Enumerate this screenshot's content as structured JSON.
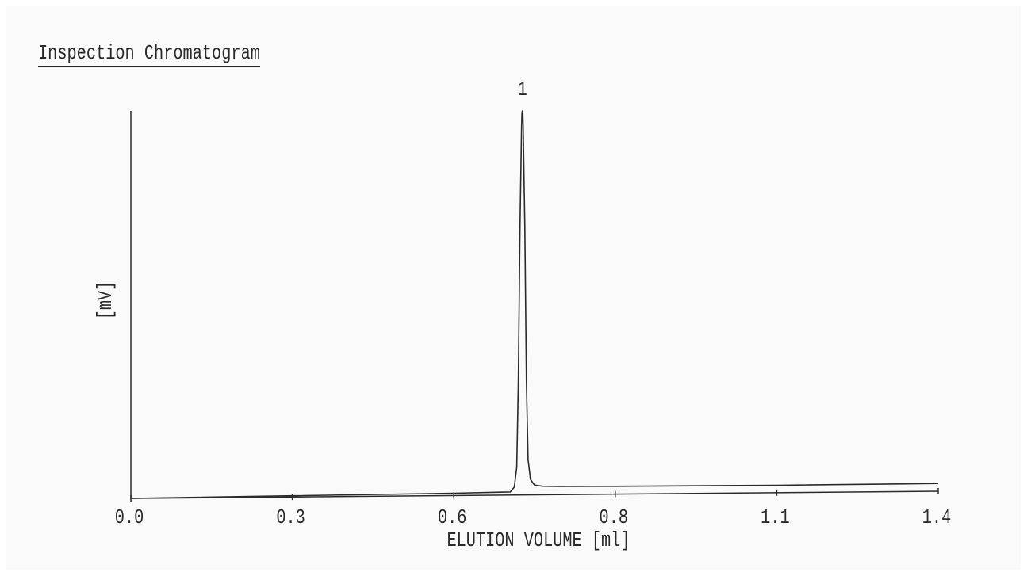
{
  "chart_data": {
    "type": "line",
    "title": "Inspection Chromatogram",
    "xlabel": "ELUTION VOLUME [ml]",
    "ylabel": "[mV]",
    "xlim": [
      0.0,
      1.0
    ],
    "x_ticks": [
      0.0,
      0.2,
      0.4,
      0.6,
      0.8,
      1.0
    ],
    "x_tick_labels": [
      "0.0",
      "0.3",
      "0.6",
      "0.8",
      "1.1",
      "1.4"
    ],
    "ylim": [
      0,
      100
    ],
    "grid": false,
    "series": [
      {
        "x": [
          0.0,
          0.2,
          0.4,
          0.47,
          0.475,
          0.478,
          0.48,
          0.482,
          0.484,
          0.4845,
          0.485,
          0.4855,
          0.486,
          0.488,
          0.49,
          0.492,
          0.495,
          0.5,
          0.51,
          0.53,
          0.6,
          0.8,
          1.0
        ],
        "y": [
          0.0,
          0.3,
          0.6,
          0.8,
          2.0,
          8.0,
          30.0,
          70.0,
          96.0,
          99.5,
          100.0,
          99.5,
          96.0,
          70.0,
          30.0,
          10.0,
          4.0,
          2.5,
          2.2,
          2.1,
          2.0,
          1.9,
          2.0
        ]
      }
    ],
    "annotations": [
      {
        "text": "1",
        "x": 0.485
      }
    ]
  }
}
